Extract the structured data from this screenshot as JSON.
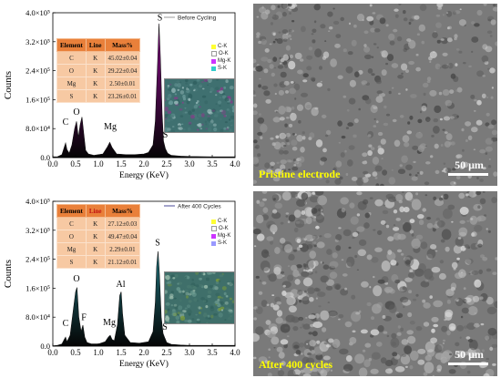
{
  "panels": [
    {
      "id": "top",
      "series_label": "Before Cycling",
      "fill_color": "#8b0a8b",
      "legend_line_color": "#999999",
      "caption": "Pristine electrode",
      "scale_bar": "50 μm",
      "table": {
        "headers": [
          "Element",
          "Line",
          "Mass%"
        ],
        "rows": [
          [
            "C",
            "K",
            "45.02±0.04"
          ],
          [
            "O",
            "K",
            "29.22±0.04"
          ],
          [
            "Mg",
            "K",
            "2.50±0.01"
          ],
          [
            "S",
            "K",
            "23.26±0.01"
          ]
        ]
      },
      "map_legend": [
        {
          "label": "C-K",
          "color": "#ffff33"
        },
        {
          "label": "O-K",
          "color": "#ffffff"
        },
        {
          "label": "Mg-K",
          "color": "#cc33ff"
        },
        {
          "label": "S-K",
          "color": "#33cccc"
        }
      ],
      "peak_labels": [
        {
          "text": "C",
          "x": 0.28,
          "y": 90000.0
        },
        {
          "text": "O",
          "x": 0.52,
          "y": 118000.0
        },
        {
          "text": "F",
          "x": 0.68,
          "y": 156000.0
        },
        {
          "text": "Mg",
          "x": 1.26,
          "y": 78000.0
        },
        {
          "text": "S",
          "x": 2.35,
          "y": 378000.0
        },
        {
          "text": "S",
          "x": 2.47,
          "y": 55000.0
        }
      ]
    },
    {
      "id": "bottom",
      "series_label": "After 400 Cycles",
      "fill_color": "#1d6f78",
      "legend_line_color": "#4a4a9a",
      "caption": "After 400 cycles",
      "scale_bar": "50 μm",
      "table": {
        "headers": [
          "Element",
          "Line",
          "Mass%"
        ],
        "rows": [
          [
            "C",
            "K",
            "27.12±0.03"
          ],
          [
            "O",
            "K",
            "49.47±0.04"
          ],
          [
            "Mg",
            "K",
            "2.29±0.01"
          ],
          [
            "S",
            "K",
            "21.12±0.01"
          ]
        ]
      },
      "map_legend": [
        {
          "label": "C-K",
          "color": "#ffff33"
        },
        {
          "label": "O-K",
          "color": "#ffffff"
        },
        {
          "label": "Mg-K",
          "color": "#cc33ff"
        },
        {
          "label": "S-K",
          "color": "#9999ff"
        }
      ],
      "peak_labels": [
        {
          "text": "C",
          "x": 0.28,
          "y": 55000.0
        },
        {
          "text": "O",
          "x": 0.52,
          "y": 178000.0
        },
        {
          "text": "F",
          "x": 0.68,
          "y": 72000.0
        },
        {
          "text": "Mg",
          "x": 1.24,
          "y": 58000.0
        },
        {
          "text": "Al",
          "x": 1.49,
          "y": 164000.0
        },
        {
          "text": "S",
          "x": 2.3,
          "y": 278000.0
        },
        {
          "text": "S",
          "x": 2.46,
          "y": 45000.0
        }
      ]
    }
  ],
  "chart_data": [
    {
      "type": "area",
      "series": [
        {
          "name": "Before Cycling",
          "x": [
            0.0,
            0.1,
            0.2,
            0.25,
            0.28,
            0.31,
            0.36,
            0.42,
            0.48,
            0.52,
            0.56,
            0.6,
            0.64,
            0.68,
            0.72,
            0.78,
            0.9,
            1.1,
            1.2,
            1.25,
            1.3,
            1.4,
            1.6,
            1.8,
            2.0,
            2.1,
            2.2,
            2.25,
            2.3,
            2.33,
            2.36,
            2.4,
            2.43,
            2.47,
            2.52,
            2.6,
            2.8,
            3.0,
            3.5,
            4.0
          ],
          "y": [
            2000.0,
            2000.0,
            8000.0,
            28000.0,
            40000.0,
            22000.0,
            12000.0,
            35000.0,
            80000.0,
            100000.0,
            55000.0,
            90000.0,
            112000.0,
            65000.0,
            20000.0,
            10000.0,
            6000.0,
            10000.0,
            30000.0,
            42000.0,
            28000.0,
            10000.0,
            8000.0,
            8000.0,
            10000.0,
            14000.0,
            35000.0,
            100000.0,
            260000.0,
            370000.0,
            280000.0,
            120000.0,
            45000.0,
            25000.0,
            12000.0,
            6000.0,
            4000.0,
            3000.0,
            2000.0,
            2000.0
          ]
        }
      ],
      "xlabel": "Energy (KeV)",
      "ylabel": "Counts",
      "xlim": [
        0.0,
        4.0
      ],
      "ylim": [
        0,
        400000
      ],
      "x_ticks": [
        "0.0",
        "0.5",
        "1.0",
        "1.5",
        "2.0",
        "2.5",
        "3.0",
        "3.5",
        "4.0"
      ],
      "y_ticks": [
        "0.0",
        "8.0×10⁴",
        "1.6×10⁵",
        "2.4×10⁵",
        "3.2×10⁵",
        "4.0×10⁵"
      ],
      "legend": "top-right"
    },
    {
      "type": "area",
      "series": [
        {
          "name": "After 400 Cycles",
          "x": [
            0.0,
            0.1,
            0.2,
            0.25,
            0.28,
            0.31,
            0.38,
            0.45,
            0.5,
            0.53,
            0.57,
            0.62,
            0.66,
            0.7,
            0.75,
            0.85,
            1.0,
            1.15,
            1.22,
            1.26,
            1.3,
            1.35,
            1.42,
            1.47,
            1.5,
            1.53,
            1.58,
            1.7,
            1.9,
            2.1,
            2.2,
            2.25,
            2.28,
            2.31,
            2.34,
            2.38,
            2.42,
            2.46,
            2.5,
            2.6,
            2.8,
            3.0,
            3.5,
            4.0
          ],
          "y": [
            1000.0,
            2000.0,
            6000.0,
            18000.0,
            25000.0,
            12000.0,
            30000.0,
            100000.0,
            150000.0,
            162000.0,
            80000.0,
            40000.0,
            58000.0,
            25000.0,
            10000.0,
            6000.0,
            6000.0,
            12000.0,
            25000.0,
            30000.0,
            18000.0,
            15000.0,
            60000.0,
            140000.0,
            150000.0,
            90000.0,
            30000.0,
            10000.0,
            8000.0,
            12000.0,
            40000.0,
            120000.0,
            220000.0,
            262000.0,
            200000.0,
            80000.0,
            35000.0,
            22000.0,
            10000.0,
            5000.0,
            3000.0,
            2000.0,
            2000.0,
            2000.0
          ]
        }
      ],
      "xlabel": "Energy (KeV)",
      "ylabel": "Counts",
      "xlim": [
        0.0,
        4.0
      ],
      "ylim": [
        0,
        400000
      ],
      "x_ticks": [
        "0.0",
        "0.5",
        "1.0",
        "1.5",
        "2.0",
        "2.5",
        "3.0",
        "3.5",
        "4.0"
      ],
      "y_ticks": [
        "0.0",
        "8.0×10⁴",
        "1.6×10⁵",
        "2.4×10⁵",
        "3.2×10⁵",
        "4.0×10⁵"
      ],
      "legend": "top-right"
    }
  ]
}
